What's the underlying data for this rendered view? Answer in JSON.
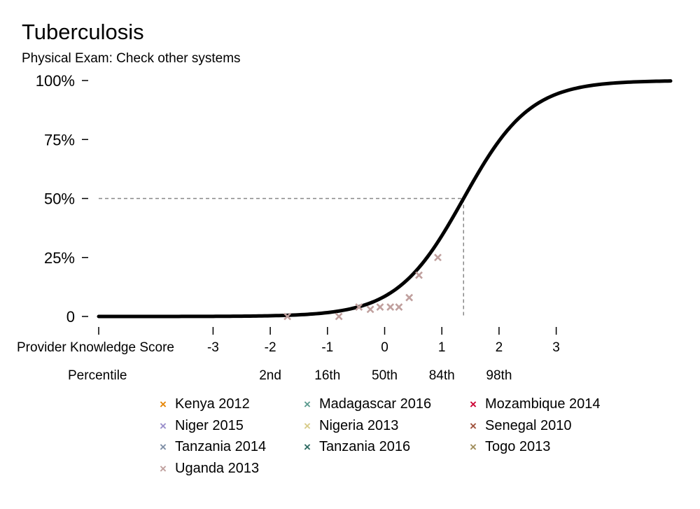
{
  "chart_data": {
    "type": "scatter",
    "title": "Tuberculosis",
    "subtitle": "Physical Exam: Check other systems",
    "xlabel": "Provider Knowledge Score",
    "percentile_label": "Percentile",
    "x_ticks": [
      -3,
      -2,
      -1,
      0,
      1,
      2,
      3
    ],
    "x_tick_labels": [
      "-3",
      "-2",
      "-1",
      "0",
      "1",
      "2",
      "3"
    ],
    "percentile_ticks": [
      {
        "x": -2,
        "label": "2nd"
      },
      {
        "x": -1,
        "label": "16th"
      },
      {
        "x": 0,
        "label": "50th"
      },
      {
        "x": 1,
        "label": "84th"
      },
      {
        "x": 2,
        "label": "98th"
      }
    ],
    "y_ticks": [
      0,
      0.25,
      0.5,
      0.75,
      1.0
    ],
    "y_tick_labels": [
      "0",
      "25%",
      "50%",
      "75%",
      "100%"
    ],
    "xlim": [
      -5,
      5
    ],
    "ylim": [
      0,
      1
    ],
    "curve": {
      "x50": 1.38,
      "slope": 1.72,
      "color": "#000000"
    },
    "reference_line": {
      "x": 1.38,
      "y": 0.5
    },
    "series": [
      {
        "name": "Kenya 2012",
        "color": "#E58606",
        "points": []
      },
      {
        "name": "Madagascar 2016",
        "color": "#5D9C90",
        "points": []
      },
      {
        "name": "Mozambique 2014",
        "color": "#CC0033",
        "points": []
      },
      {
        "name": "Niger 2015",
        "color": "#9A8FCB",
        "points": []
      },
      {
        "name": "Nigeria 2013",
        "color": "#D8CC8A",
        "points": []
      },
      {
        "name": "Senegal 2010",
        "color": "#A0523D",
        "points": []
      },
      {
        "name": "Tanzania 2014",
        "color": "#7F8FA6",
        "points": []
      },
      {
        "name": "Tanzania 2016",
        "color": "#2E6B62",
        "points": []
      },
      {
        "name": "Togo 2013",
        "color": "#A08E5C",
        "points": []
      },
      {
        "name": "Uganda 2013",
        "color": "#C0A09E",
        "points": [
          {
            "x": -1.7,
            "y": 0.0
          },
          {
            "x": -0.8,
            "y": 0.0
          },
          {
            "x": -0.45,
            "y": 0.04
          },
          {
            "x": -0.25,
            "y": 0.03
          },
          {
            "x": -0.08,
            "y": 0.04
          },
          {
            "x": 0.1,
            "y": 0.04
          },
          {
            "x": 0.25,
            "y": 0.04
          },
          {
            "x": 0.43,
            "y": 0.08
          },
          {
            "x": 0.6,
            "y": 0.175
          },
          {
            "x": 0.93,
            "y": 0.25
          }
        ]
      }
    ],
    "grid": false,
    "legend_position": "bottom"
  }
}
